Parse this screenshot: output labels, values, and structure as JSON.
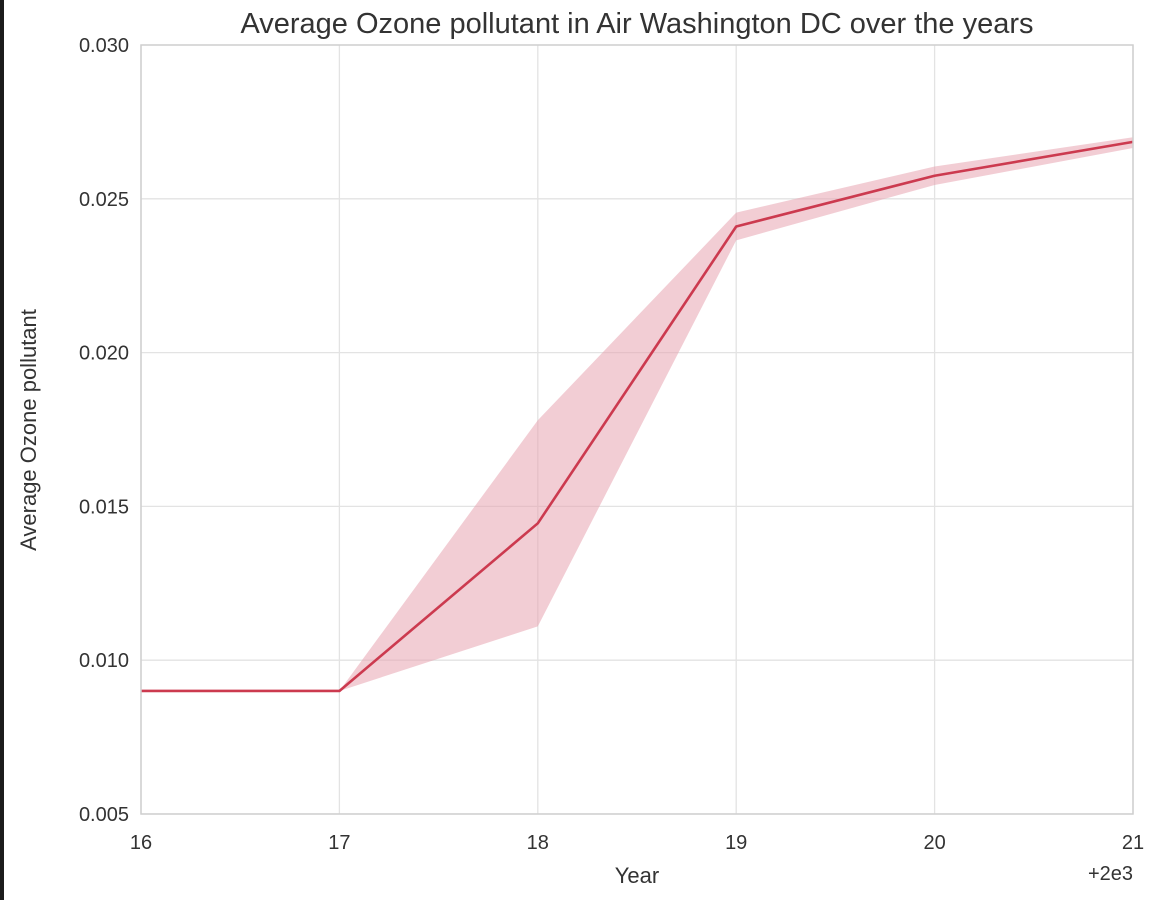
{
  "chart_data": {
    "type": "line",
    "title": "Average Ozone pollutant in Air Washington DC over the years",
    "xlabel": "Year",
    "ylabel": "Average Ozone pollutant",
    "x_offset_label": "+2e3",
    "x": [
      16,
      17,
      18,
      19,
      20,
      21
    ],
    "x_tick_labels": [
      "16",
      "17",
      "18",
      "19",
      "20",
      "21"
    ],
    "y_tick_values": [
      0.005,
      0.01,
      0.015,
      0.02,
      0.025,
      0.03
    ],
    "y_tick_labels": [
      "0.005",
      "0.010",
      "0.015",
      "0.020",
      "0.025",
      "0.030"
    ],
    "xlim": [
      16,
      21
    ],
    "ylim": [
      0.005,
      0.03
    ],
    "grid": true,
    "series": [
      {
        "values": [
          0.009,
          0.009,
          0.01445,
          0.0241,
          0.02575,
          0.02685
        ],
        "ci_lower": [
          0.009,
          0.009,
          0.0111,
          0.02365,
          0.02545,
          0.02665
        ],
        "ci_upper": [
          0.009,
          0.009,
          0.0178,
          0.02455,
          0.02605,
          0.027
        ],
        "color": "#cc3a4f",
        "band_color": "#e8a4b1"
      }
    ]
  }
}
